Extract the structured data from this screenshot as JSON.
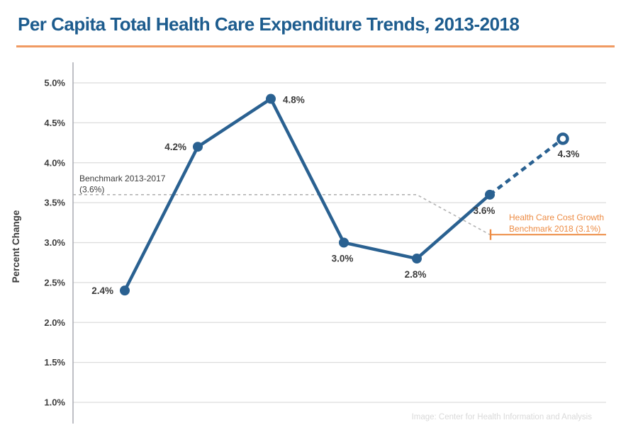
{
  "header": {
    "title": "Per Capita Total Health Care Expenditure Trends, 2013-2018"
  },
  "chart_data": {
    "type": "line",
    "title": "Per Capita Total Health Care Expenditure Trends, 2013-2018",
    "xlabel": "",
    "ylabel": "Percent Change",
    "ylim": [
      1.0,
      5.0
    ],
    "grid": true,
    "yticks": [
      {
        "value": 5.0,
        "label": "5.0%"
      },
      {
        "value": 4.5,
        "label": "4.5%"
      },
      {
        "value": 4.0,
        "label": "4.0%"
      },
      {
        "value": 3.5,
        "label": "3.5%"
      },
      {
        "value": 3.0,
        "label": "3.0%"
      },
      {
        "value": 2.5,
        "label": "2.5%"
      },
      {
        "value": 2.0,
        "label": "2.0%"
      },
      {
        "value": 1.5,
        "label": "1.5%"
      },
      {
        "value": 1.0,
        "label": "1.0%"
      }
    ],
    "series": [
      {
        "name": "per-capita-expenditure-percent-change",
        "points": [
          {
            "value": 2.4,
            "label": "2.4%",
            "marker": "filled",
            "label_position": "left"
          },
          {
            "value": 4.2,
            "label": "4.2%",
            "marker": "filled",
            "label_position": "left"
          },
          {
            "value": 4.8,
            "label": "4.8%",
            "marker": "filled",
            "label_position": "right"
          },
          {
            "value": 3.0,
            "label": "3.0%",
            "marker": "filled",
            "label_position": "below"
          },
          {
            "value": 2.8,
            "label": "2.8%",
            "marker": "filled",
            "label_position": "below"
          },
          {
            "value": 3.6,
            "label": "3.6%",
            "marker": "filled",
            "label_position": "below-left"
          },
          {
            "value": 4.3,
            "label": "4.3%",
            "marker": "hollow",
            "label_position": "below-right"
          }
        ],
        "last_segment_style": "dashed"
      }
    ],
    "benchmarks": [
      {
        "id": "benchmark-2013-2017",
        "label_lines": [
          "Benchmark 2013-2017",
          "(3.6%)"
        ],
        "value": 3.6,
        "transition_to": 3.1,
        "style": "dashed",
        "color": "#b3b3b3",
        "text_color": "#3b3b3b"
      },
      {
        "id": "benchmark-2018",
        "label_lines": [
          "Health Care Cost Growth",
          "Benchmark 2018 (3.1%)"
        ],
        "value": 3.1,
        "style": "solid",
        "color": "#ed8b43",
        "text_color": "#ed8b43"
      }
    ],
    "attribution": "Image: Center for Health Information and Analysis",
    "colors": {
      "line": "#2a6191",
      "marker": "#2a6191",
      "title": "#1d5c8e",
      "accent_rule": "#f09a62",
      "gridline": "#dcdcdc",
      "axis": "#a8aab2",
      "label_text": "#3b3b3b",
      "tick_text": "#3f3f3f",
      "attribution_text": "#d9d9d9",
      "background": "#ffffff"
    }
  }
}
